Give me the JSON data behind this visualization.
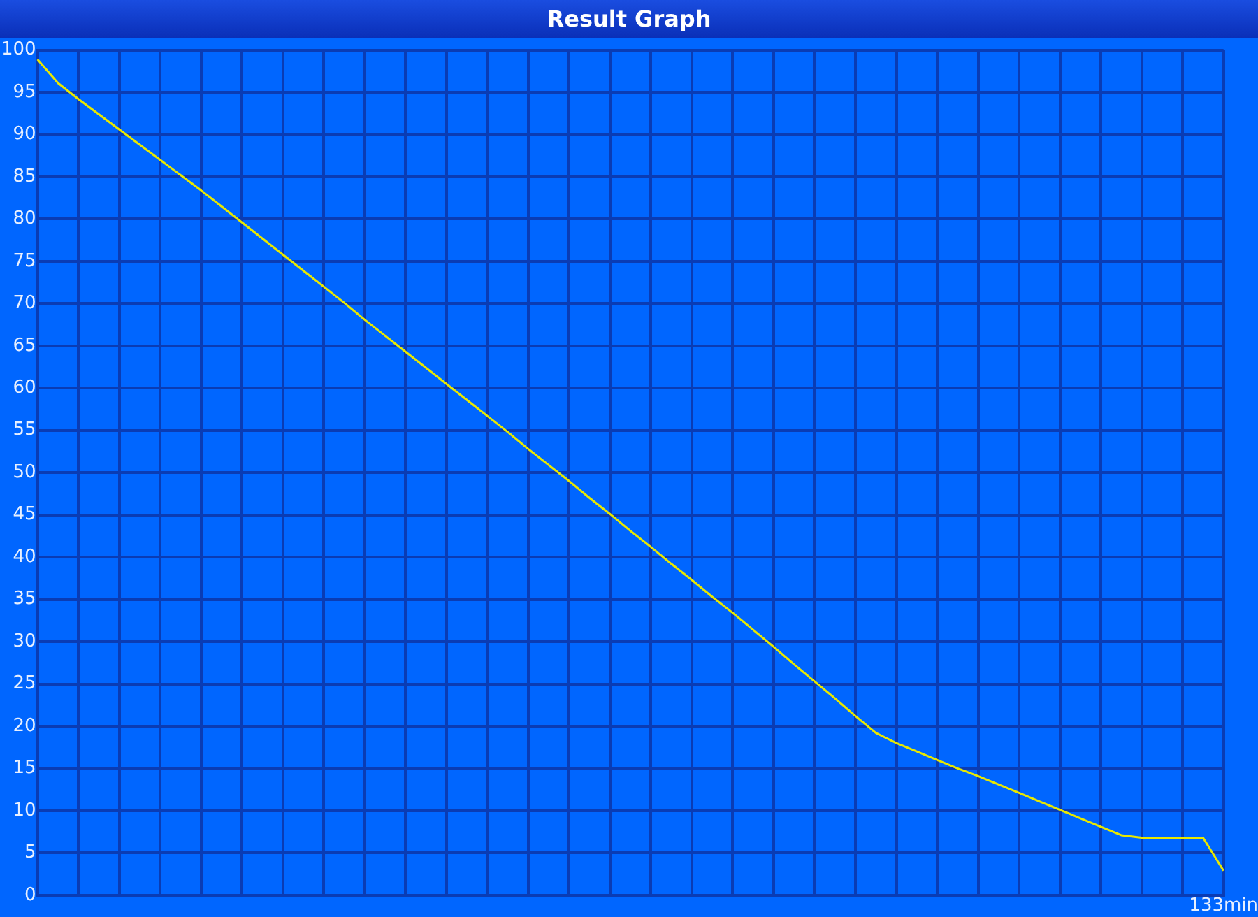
{
  "chart_data": {
    "type": "line",
    "title": "Result Graph",
    "categories": [
      null,
      null,
      null,
      null,
      null,
      null,
      null,
      null,
      null,
      null,
      null,
      null,
      null,
      null,
      null,
      null,
      null,
      null,
      null,
      null,
      null,
      null,
      null,
      null,
      null,
      null,
      null,
      null,
      null,
      null,
      null,
      null,
      null,
      null,
      null,
      null,
      null,
      null,
      null,
      null,
      null,
      null,
      null,
      null,
      null,
      null,
      null,
      null,
      null,
      null,
      null,
      null,
      null,
      null,
      null,
      null,
      null,
      null,
      "133min"
    ],
    "series": [
      {
        "color": "#e8e800",
        "values": [
          98.9,
          96.1,
          94.2,
          92.4,
          90.6,
          88.8,
          87.0,
          85.2,
          83.4,
          81.5,
          79.6,
          77.7,
          75.8,
          73.9,
          72.0,
          70.1,
          68.1,
          66.2,
          64.3,
          62.4,
          60.5,
          58.6,
          56.7,
          54.8,
          52.8,
          50.9,
          49.0,
          47.0,
          45.1,
          43.1,
          41.2,
          39.2,
          37.3,
          35.3,
          33.4,
          31.4,
          29.4,
          27.3,
          25.3,
          23.3,
          21.2,
          19.2,
          18.0,
          17.0,
          16.0,
          15.0,
          14.1,
          13.1,
          12.1,
          11.1,
          10.1,
          9.1,
          8.1,
          7.1,
          6.8,
          6.8,
          6.8,
          6.8,
          2.9
        ]
      }
    ],
    "ylim": [
      0,
      100
    ],
    "yticks": [
      0,
      5,
      10,
      15,
      20,
      25,
      30,
      35,
      40,
      45,
      50,
      55,
      60,
      65,
      70,
      75,
      80,
      85,
      90,
      95,
      100
    ],
    "grid": true,
    "legend": false,
    "marker": "none",
    "line_style": "solid"
  }
}
